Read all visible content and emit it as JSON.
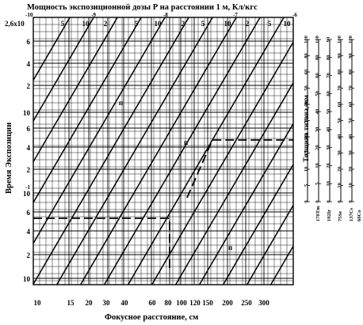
{
  "chart_data": {
    "type": "nomogram",
    "title": "Мощность экспозиционной дозы Р на расстоянии 1 м, Кл/кгс",
    "xlabel": "Фокусное расстояние, см",
    "ylabel": "Время Экспозиции",
    "top_axis": {
      "first_label": "2,6x10",
      "first_exponent": "-10",
      "ticks": [
        {
          "label": "5",
          "exp": ""
        },
        {
          "label": "10",
          "exp": "-9"
        },
        {
          "label": "2",
          "exp": ""
        },
        {
          "label": "5",
          "exp": ""
        },
        {
          "label": "10",
          "exp": "-8"
        },
        {
          "label": "2",
          "exp": ""
        },
        {
          "label": "5",
          "exp": ""
        },
        {
          "label": "10",
          "exp": "-7"
        },
        {
          "label": "2",
          "exp": ""
        },
        {
          "label": "5",
          "exp": ""
        },
        {
          "label": "10",
          "exp": "-6"
        }
      ]
    },
    "bottom_axis": {
      "ticks": [
        "10",
        "15",
        "20",
        "30",
        "40",
        "60",
        "80",
        "100",
        "120",
        "150",
        "200",
        "250",
        "300"
      ]
    },
    "left_axis": {
      "ticks": [
        {
          "label": "6",
          "exp": ""
        },
        {
          "label": "4",
          "exp": ""
        },
        {
          "label": "2",
          "exp": ""
        },
        {
          "label": "10",
          "exp": ""
        },
        {
          "label": "6",
          "exp": ""
        },
        {
          "label": "4",
          "exp": ""
        },
        {
          "label": "2",
          "exp": ""
        },
        {
          "label": "10",
          "exp": "-1"
        },
        {
          "label": "6",
          "exp": ""
        },
        {
          "label": "4",
          "exp": ""
        },
        {
          "label": "2",
          "exp": ""
        },
        {
          "label": "10",
          "exp": ""
        }
      ]
    },
    "region_labels": [
      "п",
      "п",
      "п"
    ],
    "right_scales": [
      {
        "name": "Толщина титана, мм",
        "ticks": [
          "0",
          "5",
          "10",
          "15",
          "20",
          "30",
          "40",
          "50",
          "60",
          "80",
          "100"
        ]
      },
      {
        "name": "170Tm",
        "ticks": [
          "0",
          "5",
          "10",
          "20",
          "30",
          "40",
          "50",
          "60",
          "80",
          "100"
        ]
      },
      {
        "name": "192Ir",
        "ticks": [
          "0",
          "10",
          "20",
          "30",
          "40",
          "50",
          "60",
          "70",
          "80",
          "90"
        ]
      },
      {
        "name": "75Se",
        "ticks": [
          "0",
          "10",
          "20",
          "30",
          "40",
          "50",
          "60",
          "70",
          "80",
          "90",
          "100"
        ]
      },
      {
        "name": "137Cs",
        "ticks": [
          "0",
          "10",
          "20",
          "30",
          "40",
          "50",
          "60",
          "70",
          "80",
          "90",
          "100"
        ]
      },
      {
        "name": "60Co",
        "ticks": []
      }
    ],
    "diagonal_count": 22,
    "example_path": {
      "focal_distance_cm": 80,
      "exposure_time_start": 5,
      "exposure_time_end": 5,
      "style": "dashed"
    }
  }
}
